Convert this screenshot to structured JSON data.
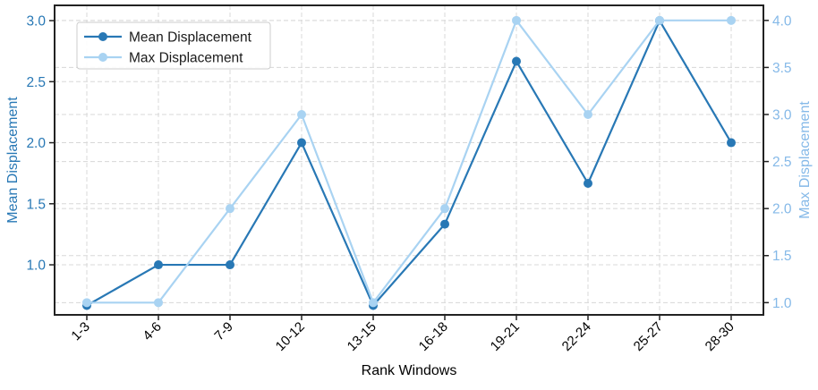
{
  "chart_data": {
    "type": "line",
    "title": "",
    "xlabel": "Rank Windows",
    "categories": [
      "1-3",
      "4-6",
      "7-9",
      "10-12",
      "13-15",
      "16-18",
      "19-21",
      "22-24",
      "25-27",
      "28-30"
    ],
    "series": [
      {
        "name": "Mean Displacement",
        "axis": "left",
        "color": "#2878b5",
        "marker": "circle",
        "values": [
          0.667,
          1.0,
          1.0,
          2.0,
          0.667,
          1.333,
          2.667,
          1.667,
          3.0,
          2.0
        ]
      },
      {
        "name": "Max Displacement",
        "axis": "right",
        "color": "#a9d3f2",
        "marker": "circle",
        "values": [
          1.0,
          1.0,
          2.0,
          3.0,
          1.0,
          2.0,
          4.0,
          3.0,
          4.0,
          4.0
        ]
      }
    ],
    "axes": {
      "left": {
        "label": "Mean Displacement",
        "color": "#2878b5",
        "ticks": [
          1.0,
          1.5,
          2.0,
          2.5,
          3.0
        ],
        "lim": [
          0.59,
          3.125
        ]
      },
      "right": {
        "label": "Max Displacement",
        "color": "#85b9e8",
        "ticks": [
          1.0,
          1.5,
          2.0,
          2.5,
          3.0,
          3.5,
          4.0
        ],
        "lim": [
          0.87,
          4.16
        ]
      }
    },
    "grid": true,
    "grid_style": "dashed",
    "legend_position": "upper left",
    "legend": [
      "Mean Displacement",
      "Max Displacement"
    ]
  },
  "style_colors": {
    "grid": "#d8d8d8",
    "spine": "#222222",
    "tick": "#222222",
    "xlabel_color": "#000000",
    "legend_border": "#cccccc",
    "legend_bg": "#ffffff",
    "legend_text": "#1a1a1a"
  }
}
